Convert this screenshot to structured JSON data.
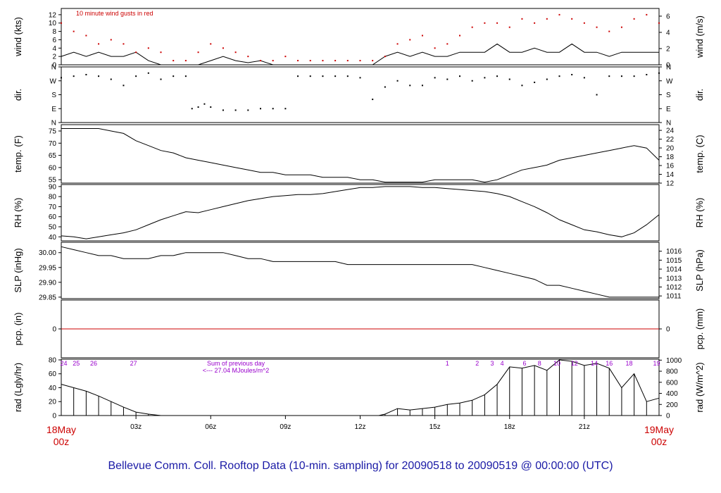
{
  "footer": {
    "title": "Bellevue Comm. Coll. Rooftop Data (10-min. sampling) for 20090518  to  20090519 @ 00:00:00  (UTC)",
    "color": "#1a1aa6"
  },
  "start_label": {
    "date": "18May",
    "time": "00z"
  },
  "end_label": {
    "date": "19May",
    "time": "00z"
  },
  "colors": {
    "red": "#cc0000",
    "purple": "#9900cc",
    "black": "#000000"
  },
  "chart_data": [
    {
      "id": "wind",
      "type": "line",
      "ylabel": "wind (kts)",
      "ylabel_right": "wind (m/s)",
      "annotation": "10  minute wind gusts in red",
      "ylim": [
        0,
        13.5
      ],
      "yticks": [
        0,
        2,
        4,
        6,
        8,
        10,
        12
      ],
      "right_ylim": [
        0,
        6.95
      ],
      "right_yticks": [
        0,
        2,
        4,
        6
      ],
      "x_hours": [
        0,
        0.5,
        1,
        1.5,
        2,
        2.5,
        3,
        3.5,
        4,
        4.5,
        5,
        5.5,
        6,
        6.5,
        7,
        7.5,
        8,
        8.5,
        9,
        9.5,
        10,
        10.5,
        11,
        11.5,
        12,
        12.5,
        13,
        13.5,
        14,
        14.5,
        15,
        15.5,
        16,
        16.5,
        17,
        17.5,
        18,
        18.5,
        19,
        19.5,
        20,
        20.5,
        21,
        21.5,
        22,
        22.5,
        23,
        23.5,
        24
      ],
      "series": [
        {
          "name": "wind speed",
          "color": "#000000",
          "values": [
            2,
            3,
            2,
            3,
            2,
            2,
            3,
            1,
            0,
            0,
            0,
            0,
            1,
            2,
            1,
            0.5,
            1,
            0,
            0,
            0,
            0,
            0,
            0,
            0,
            0,
            0,
            2,
            3,
            2,
            3,
            2,
            2,
            3,
            3,
            3,
            5,
            3,
            3,
            4,
            3,
            3,
            5,
            3,
            3,
            2,
            3,
            3,
            3,
            3
          ]
        },
        {
          "name": "10  minute wind gusts in red",
          "color": "#cc0000",
          "values": [
            10,
            8,
            7,
            5,
            6,
            5,
            3,
            4,
            3,
            1,
            1,
            3,
            5,
            4,
            3,
            2,
            1,
            1,
            2,
            1,
            1,
            1,
            1,
            1,
            1,
            1,
            2,
            5,
            6,
            7,
            4,
            5,
            7,
            9,
            10,
            10,
            9,
            11,
            10,
            11,
            12,
            11,
            10,
            9,
            8,
            9,
            11,
            12,
            10
          ]
        }
      ]
    },
    {
      "id": "dir",
      "type": "scatter",
      "ylabel": "dir.",
      "ylabel_right": "dir.",
      "ylim": [
        0,
        360
      ],
      "ytick_labels": [
        "N",
        "E",
        "S",
        "W",
        "N"
      ],
      "x_hours": [
        0,
        0.5,
        1,
        1.5,
        2,
        2.5,
        3,
        3.5,
        4,
        4.5,
        5,
        5.25,
        5.5,
        5.75,
        6,
        6.5,
        7,
        7.5,
        8,
        8.5,
        9,
        9.5,
        10,
        10.5,
        11,
        11.5,
        12,
        12.5,
        13,
        13.5,
        14,
        14.5,
        15,
        15.5,
        16,
        16.5,
        17,
        17.5,
        18,
        18.5,
        19,
        19.5,
        20,
        20.5,
        21,
        21.5,
        22,
        22.5,
        23,
        23.5,
        24
      ],
      "values": [
        290,
        300,
        310,
        300,
        280,
        240,
        300,
        320,
        280,
        300,
        300,
        90,
        100,
        120,
        100,
        80,
        80,
        80,
        90,
        90,
        90,
        300,
        300,
        300,
        300,
        300,
        290,
        150,
        230,
        270,
        240,
        240,
        290,
        280,
        300,
        270,
        290,
        300,
        280,
        240,
        260,
        280,
        300,
        310,
        290,
        180,
        300,
        300,
        300,
        310,
        320
      ]
    },
    {
      "id": "temp",
      "type": "line",
      "ylabel": "temp. (F)",
      "ylabel_right": "temp. (C)",
      "ylim": [
        53.6,
        77.6
      ],
      "yticks": [
        55,
        60,
        65,
        70,
        75
      ],
      "right_ylim": [
        12,
        25.3
      ],
      "right_yticks": [
        12,
        14,
        16,
        18,
        20,
        22,
        24
      ],
      "x_hours": [
        0,
        0.5,
        1,
        1.5,
        2,
        2.5,
        3,
        3.5,
        4,
        4.5,
        5,
        5.5,
        6,
        6.5,
        7,
        7.5,
        8,
        8.5,
        9,
        9.5,
        10,
        10.5,
        11,
        11.5,
        12,
        12.5,
        13,
        13.5,
        14,
        14.5,
        15,
        15.5,
        16,
        16.5,
        17,
        17.5,
        18,
        18.5,
        19,
        19.5,
        20,
        20.5,
        21,
        21.5,
        22,
        22.5,
        23,
        23.5,
        24
      ],
      "values": [
        76,
        76,
        76,
        76,
        75,
        74,
        71,
        69,
        67,
        66,
        64,
        63,
        62,
        61,
        60,
        59,
        58,
        58,
        57,
        57,
        57,
        56,
        56,
        56,
        55,
        55,
        54,
        54,
        54,
        54,
        55,
        55,
        55,
        55,
        54,
        55,
        57,
        59,
        60,
        61,
        63,
        64,
        65,
        66,
        67,
        68,
        69,
        68,
        63
      ]
    },
    {
      "id": "rh",
      "type": "line",
      "ylabel": "RH (%)",
      "ylabel_right": "RH (%)",
      "ylim": [
        36,
        92
      ],
      "yticks": [
        40,
        50,
        60,
        70,
        80,
        90
      ],
      "x_hours": [
        0,
        0.5,
        1,
        1.5,
        2,
        2.5,
        3,
        3.5,
        4,
        4.5,
        5,
        5.5,
        6,
        6.5,
        7,
        7.5,
        8,
        8.5,
        9,
        9.5,
        10,
        10.5,
        11,
        11.5,
        12,
        12.5,
        13,
        13.5,
        14,
        14.5,
        15,
        15.5,
        16,
        16.5,
        17,
        17.5,
        18,
        18.5,
        19,
        19.5,
        20,
        20.5,
        21,
        21.5,
        22,
        22.5,
        23,
        23.5,
        24
      ],
      "values": [
        41,
        40,
        38,
        40,
        42,
        44,
        47,
        52,
        57,
        61,
        65,
        64,
        67,
        70,
        73,
        76,
        78,
        80,
        81,
        82,
        82,
        83,
        85,
        87,
        89,
        89,
        90,
        90,
        90,
        89,
        89,
        88,
        87,
        86,
        85,
        83,
        80,
        75,
        70,
        64,
        57,
        52,
        47,
        45,
        42,
        40,
        44,
        52,
        62
      ]
    },
    {
      "id": "slp",
      "type": "line",
      "ylabel": "SLP (inHg)",
      "ylabel_right": "SLP (hPa)",
      "ylim": [
        29.845,
        30.035
      ],
      "yticks": [
        29.85,
        29.9,
        29.95,
        30.0
      ],
      "ytick_format": 2,
      "right_ylim": [
        1010.7,
        1017.0
      ],
      "right_yticks": [
        1011,
        1012,
        1013,
        1014,
        1015,
        1016
      ],
      "x_hours": [
        0,
        0.5,
        1,
        1.5,
        2,
        2.5,
        3,
        3.5,
        4,
        4.5,
        5,
        5.5,
        6,
        6.5,
        7,
        7.5,
        8,
        8.5,
        9,
        9.5,
        10,
        10.5,
        11,
        11.5,
        12,
        12.5,
        13,
        13.5,
        14,
        14.5,
        15,
        15.5,
        16,
        16.5,
        17,
        17.5,
        18,
        18.5,
        19,
        19.5,
        20,
        20.5,
        21,
        21.5,
        22,
        22.5,
        23,
        23.5,
        24
      ],
      "values": [
        30.02,
        30.01,
        30.0,
        29.99,
        29.99,
        29.98,
        29.98,
        29.98,
        29.99,
        29.99,
        30.0,
        30.0,
        30.0,
        30.0,
        29.99,
        29.98,
        29.98,
        29.97,
        29.97,
        29.97,
        29.97,
        29.97,
        29.97,
        29.96,
        29.96,
        29.96,
        29.96,
        29.96,
        29.96,
        29.96,
        29.96,
        29.96,
        29.96,
        29.96,
        29.95,
        29.94,
        29.93,
        29.92,
        29.91,
        29.89,
        29.89,
        29.88,
        29.87,
        29.86,
        29.85,
        29.85,
        29.85,
        29.85,
        29.85
      ]
    },
    {
      "id": "pcp",
      "type": "line",
      "ylabel": "pcp. (in)",
      "ylabel_right": "pcp. (mm)",
      "ylim": [
        -1,
        1
      ],
      "yticks": [
        0
      ],
      "right_yticks": [
        0
      ],
      "x_hours": [
        0,
        24
      ],
      "values": [
        0,
        0
      ],
      "color": "#cc0000"
    },
    {
      "id": "rad",
      "type": "bar",
      "ylabel": "rad (Lgly/hr)",
      "ylabel_right": "rad (W/m^2)",
      "ylim": [
        0,
        81
      ],
      "yticks": [
        0,
        20,
        40,
        60,
        80
      ],
      "right_ylim": [
        0,
        1017
      ],
      "right_yticks": [
        0,
        200,
        400,
        600,
        800,
        1000
      ],
      "x_hours": [
        0,
        0.5,
        1,
        1.5,
        2,
        2.5,
        3,
        3.5,
        4,
        12.75,
        13,
        13.5,
        14,
        14.5,
        15,
        15.5,
        16,
        16.5,
        17,
        17.5,
        18,
        18.5,
        19,
        19.5,
        20,
        20.5,
        21,
        21.5,
        22,
        22.5,
        23,
        23.5,
        24
      ],
      "values": [
        45,
        40,
        35,
        28,
        20,
        12,
        5,
        2,
        0,
        0,
        2,
        10,
        8,
        10,
        12,
        16,
        18,
        22,
        30,
        45,
        70,
        68,
        72,
        65,
        80,
        78,
        72,
        75,
        68,
        40,
        60,
        20,
        25
      ],
      "annotations": [
        {
          "text": "Sum of previous day",
          "color": "#9900cc"
        },
        {
          "text": "<--- 27.04 MJoules/m^2",
          "color": "#9900cc"
        }
      ],
      "day_labels": [
        {
          "text": "24",
          "hour": 0.1
        },
        {
          "text": "25",
          "hour": 0.6
        },
        {
          "text": "26",
          "hour": 1.3
        },
        {
          "text": "27",
          "hour": 2.9
        },
        {
          "text": "1",
          "hour": 15.5
        },
        {
          "text": "2",
          "hour": 16.7
        },
        {
          "text": "3",
          "hour": 17.3
        },
        {
          "text": "4",
          "hour": 17.7
        },
        {
          "text": "6",
          "hour": 18.6
        },
        {
          "text": "8",
          "hour": 19.2
        },
        {
          "text": "10",
          "hour": 19.9
        },
        {
          "text": "12",
          "hour": 20.6
        },
        {
          "text": "14",
          "hour": 21.4
        },
        {
          "text": "16",
          "hour": 22.0
        },
        {
          "text": "18",
          "hour": 22.8
        },
        {
          "text": "19",
          "hour": 23.9
        }
      ]
    }
  ],
  "x_axis": {
    "ticks": [
      {
        "hour": 3,
        "label": "03z"
      },
      {
        "hour": 6,
        "label": "06z"
      },
      {
        "hour": 9,
        "label": "09z"
      },
      {
        "hour": 12,
        "label": "12z"
      },
      {
        "hour": 15,
        "label": "15z"
      },
      {
        "hour": 18,
        "label": "18z"
      },
      {
        "hour": 21,
        "label": "21z"
      }
    ]
  }
}
